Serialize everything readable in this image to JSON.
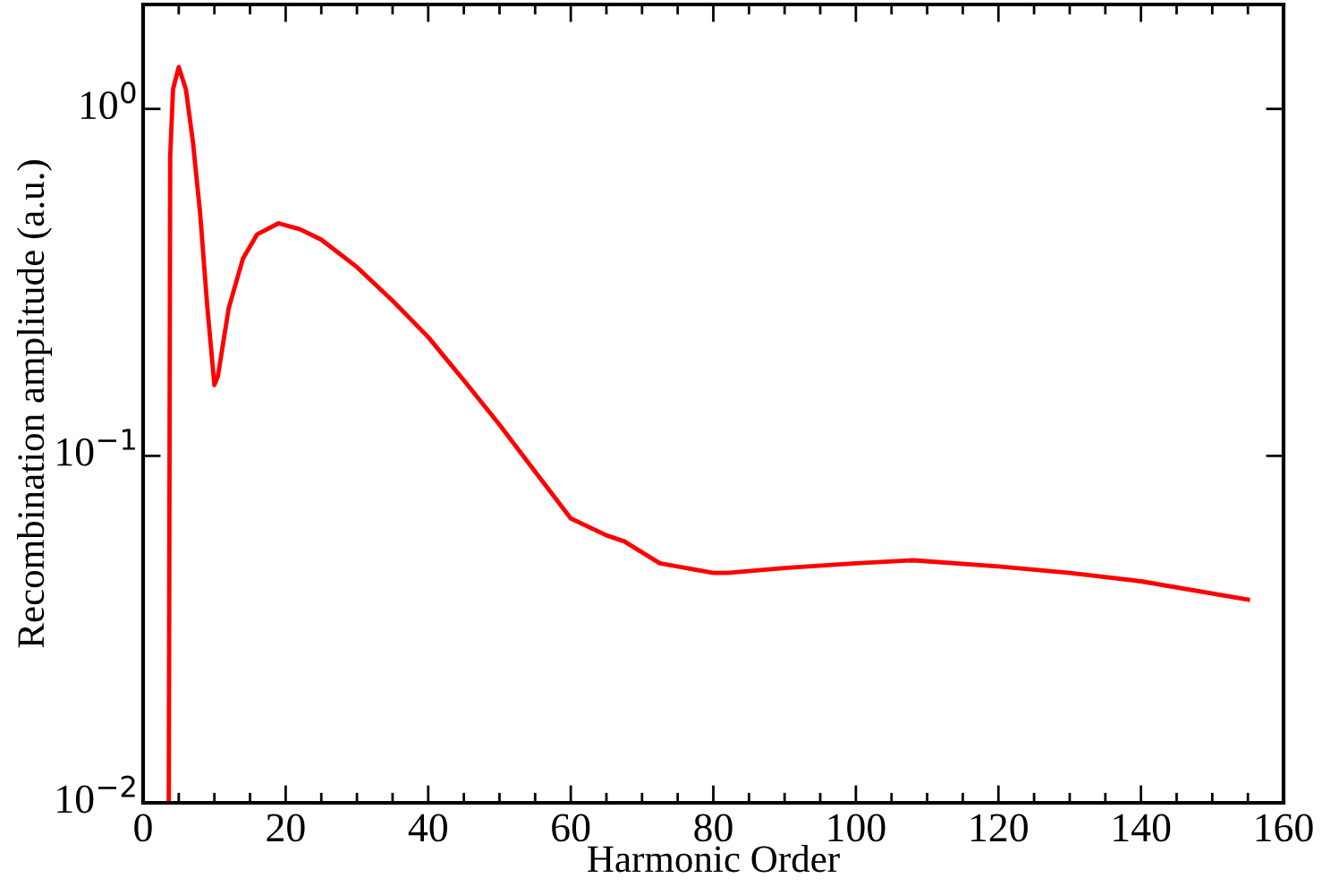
{
  "chart_data": {
    "type": "line",
    "xlabel": "Harmonic Order",
    "ylabel": "Recombination amplitude (a.u.)",
    "log": "y",
    "xlim": [
      0,
      160
    ],
    "ylim": [
      0.01,
      2
    ],
    "xticks": [
      0,
      20,
      40,
      60,
      80,
      100,
      120,
      140,
      160
    ],
    "yticks": [
      {
        "value": 0.01,
        "label": "10$^{−2}$"
      },
      {
        "value": 0.1,
        "label": "10$^{−1}$"
      },
      {
        "value": 1,
        "label": "10$^{0}$"
      }
    ],
    "marker": "none",
    "line_style": "solid",
    "series": [
      {
        "color": "#ff0000",
        "x": [
          3.6,
          3.8,
          4.2,
          5,
          6,
          7,
          8,
          9,
          10,
          10.5,
          12,
          14,
          16,
          19,
          22,
          25,
          30,
          35,
          40,
          45,
          50,
          55,
          60,
          65,
          67.5,
          72.5,
          80,
          82,
          90,
          100,
          108,
          120,
          130,
          140,
          155
        ],
        "values": [
          0.01,
          0.73,
          1.14,
          1.32,
          1.14,
          0.8,
          0.5,
          0.27,
          0.16,
          0.17,
          0.266,
          0.37,
          0.435,
          0.468,
          0.45,
          0.42,
          0.35,
          0.28,
          0.22,
          0.165,
          0.123,
          0.09,
          0.066,
          0.059,
          0.0567,
          0.049,
          0.046,
          0.046,
          0.0475,
          0.049,
          0.05,
          0.048,
          0.046,
          0.0435,
          0.0385
        ]
      }
    ]
  }
}
